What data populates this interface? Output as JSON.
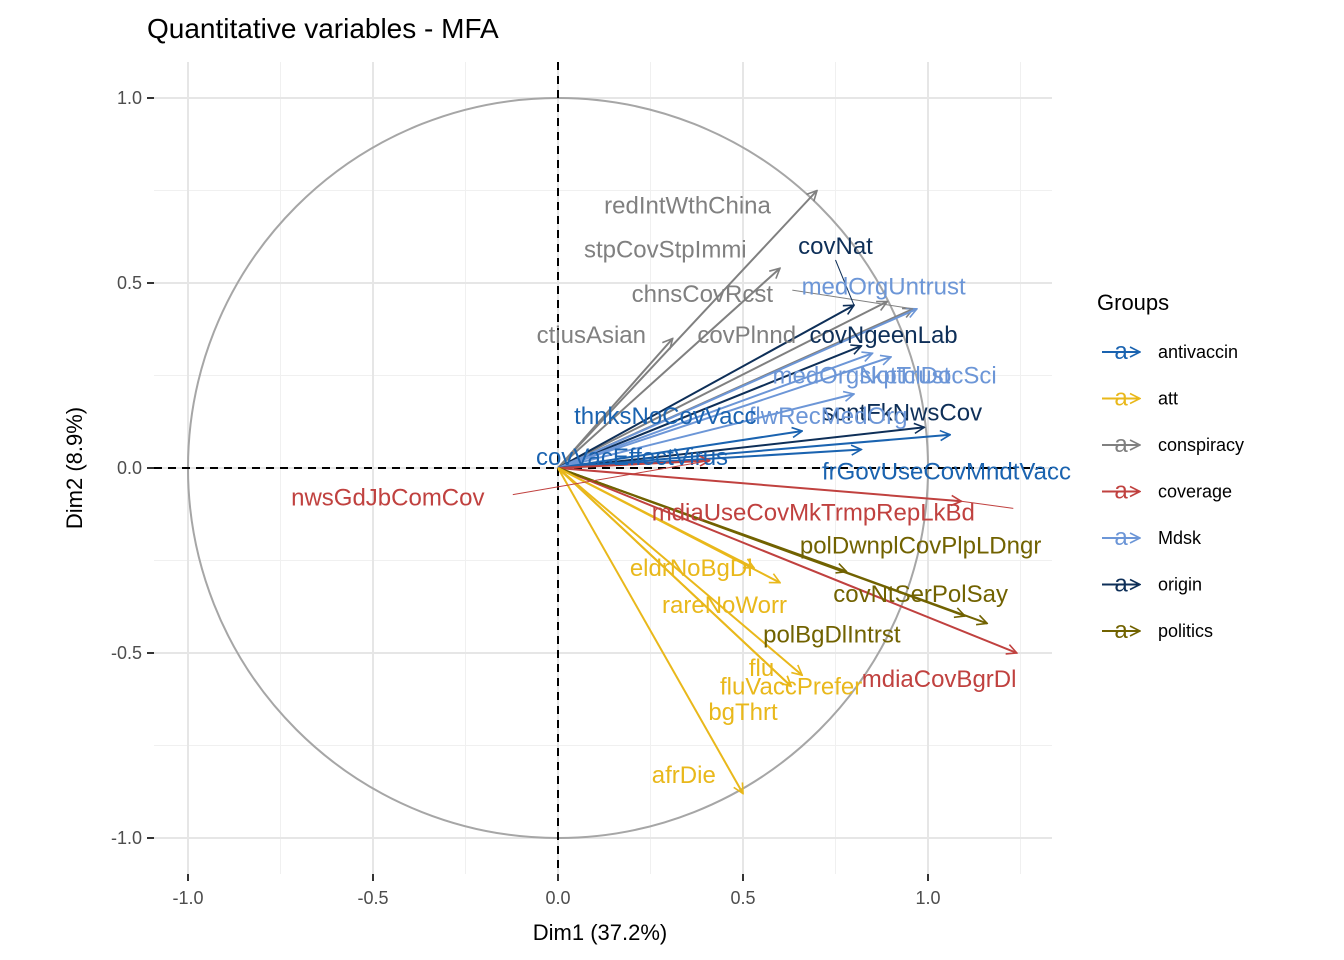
{
  "chart_data": {
    "type": "scatter",
    "subtype": "correlation-circle",
    "title": "Quantitative variables - MFA",
    "xlabel": "Dim1 (37.2%)",
    "ylabel": "Dim2 (8.9%)",
    "xlim": [
      -1.0,
      1.25
    ],
    "ylim": [
      -1.0,
      1.0
    ],
    "x_ticks": [
      -1.0,
      -0.5,
      0.0,
      0.5,
      1.0
    ],
    "x_tick_labels": [
      "-1.0",
      "-0.5",
      "0.0",
      "0.5",
      "1.0"
    ],
    "y_ticks": [
      -1.0,
      -0.5,
      0.0,
      0.5,
      1.0
    ],
    "y_tick_labels": [
      "-1.0",
      "-0.5",
      "0.0",
      "0.5",
      "1.0"
    ],
    "grid": true,
    "unit_circle": true,
    "legend_title": "Groups",
    "legend_position": "right",
    "groups": [
      {
        "name": "antivaccin",
        "color": "#1a63b0"
      },
      {
        "name": "att",
        "color": "#e9b81b"
      },
      {
        "name": "conspiracy",
        "color": "#808080"
      },
      {
        "name": "coverage",
        "color": "#c0413f"
      },
      {
        "name": "Mdsk",
        "color": "#6c96d7"
      },
      {
        "name": "origin",
        "color": "#0e2f58"
      },
      {
        "name": "politics",
        "color": "#716200"
      }
    ],
    "variables": [
      {
        "name": "redIntWthChina",
        "group": "conspiracy",
        "x": 0.7,
        "y": 0.75,
        "lx": 0.35,
        "ly": 0.71
      },
      {
        "name": "stpCovStpImmi",
        "group": "conspiracy",
        "x": 0.6,
        "y": 0.54,
        "lx": 0.29,
        "ly": 0.59
      },
      {
        "name": "chnsCovRcst",
        "group": "conspiracy",
        "x": 0.96,
        "y": 0.43,
        "lx": 0.39,
        "ly": 0.47
      },
      {
        "name": "ctiusAsian",
        "group": "conspiracy",
        "x": 0.31,
        "y": 0.35,
        "lx": 0.09,
        "ly": 0.36
      },
      {
        "name": "covPlnnd",
        "group": "conspiracy",
        "x": 0.89,
        "y": 0.45,
        "lx": 0.51,
        "ly": 0.36
      },
      {
        "name": "covNat",
        "group": "origin",
        "x": 0.8,
        "y": 0.44,
        "lx": 0.75,
        "ly": 0.6
      },
      {
        "name": "covNgeenLab",
        "group": "origin",
        "x": 0.82,
        "y": 0.33,
        "lx": 0.88,
        "ly": 0.36
      },
      {
        "name": "scntFkNwsCov",
        "group": "origin",
        "x": 0.99,
        "y": 0.11,
        "lx": 0.93,
        "ly": 0.15
      },
      {
        "name": "medOrgUntrust",
        "group": "Mdsk",
        "x": 0.97,
        "y": 0.43,
        "lx": 0.88,
        "ly": 0.49
      },
      {
        "name": "medOrgNotTrust",
        "group": "Mdsk",
        "x": 0.85,
        "y": 0.31,
        "lx": 0.82,
        "ly": 0.25
      },
      {
        "name": "skptclDocSci",
        "group": "Mdsk",
        "x": 0.9,
        "y": 0.3,
        "lx": 1.0,
        "ly": 0.25
      },
      {
        "name": "flwRecMedOrg",
        "group": "Mdsk",
        "x": 0.8,
        "y": 0.2,
        "lx": 0.73,
        "ly": 0.14
      },
      {
        "name": "thnksNoCovVacc",
        "group": "antivaccin",
        "x": 0.66,
        "y": 0.1,
        "lx": 0.29,
        "ly": 0.14
      },
      {
        "name": "covVacEffectVirus",
        "group": "antivaccin",
        "x": 0.82,
        "y": 0.05,
        "lx": 0.2,
        "ly": 0.03
      },
      {
        "name": "frGovUseCovMndtVacc",
        "group": "antivaccin",
        "x": 1.06,
        "y": 0.09,
        "lx": 1.05,
        "ly": -0.01
      },
      {
        "name": "nwsGdJbComCov",
        "group": "coverage",
        "x": 0.41,
        "y": 0.02,
        "lx": -0.46,
        "ly": -0.08
      },
      {
        "name": "mdiaUseCovMkTrmpRepLkBd",
        "group": "coverage",
        "x": 1.09,
        "y": -0.09,
        "lx": 0.69,
        "ly": -0.12
      },
      {
        "name": "mdiaCovBgrDl",
        "group": "coverage",
        "x": 1.24,
        "y": -0.5,
        "lx": 1.03,
        "ly": -0.57
      },
      {
        "name": "polDwnplCovPlpLDngr",
        "group": "politics",
        "x": 0.78,
        "y": -0.28,
        "lx": 0.98,
        "ly": -0.21
      },
      {
        "name": "covNtSerPolSay",
        "group": "politics",
        "x": 1.1,
        "y": -0.4,
        "lx": 0.98,
        "ly": -0.34
      },
      {
        "name": "polBgDlIntrst",
        "group": "politics",
        "x": 1.16,
        "y": -0.42,
        "lx": 0.74,
        "ly": -0.45
      },
      {
        "name": "eldrNoBgDl",
        "group": "att",
        "x": 0.53,
        "y": -0.27,
        "lx": 0.36,
        "ly": -0.27
      },
      {
        "name": "rareNoWorr",
        "group": "att",
        "x": 0.6,
        "y": -0.31,
        "lx": 0.45,
        "ly": -0.37
      },
      {
        "name": "flu",
        "group": "att",
        "x": 0.66,
        "y": -0.56,
        "lx": 0.55,
        "ly": -0.54
      },
      {
        "name": "fluVaccPrefer",
        "group": "att",
        "x": 0.63,
        "y": -0.59,
        "lx": 0.63,
        "ly": -0.59
      },
      {
        "name": "bgThrt",
        "group": "att",
        "x": 0.63,
        "y": -0.59,
        "lx": 0.5,
        "ly": -0.66
      },
      {
        "name": "afrDie",
        "group": "att",
        "x": 0.5,
        "y": -0.88,
        "lx": 0.34,
        "ly": -0.83
      }
    ]
  }
}
